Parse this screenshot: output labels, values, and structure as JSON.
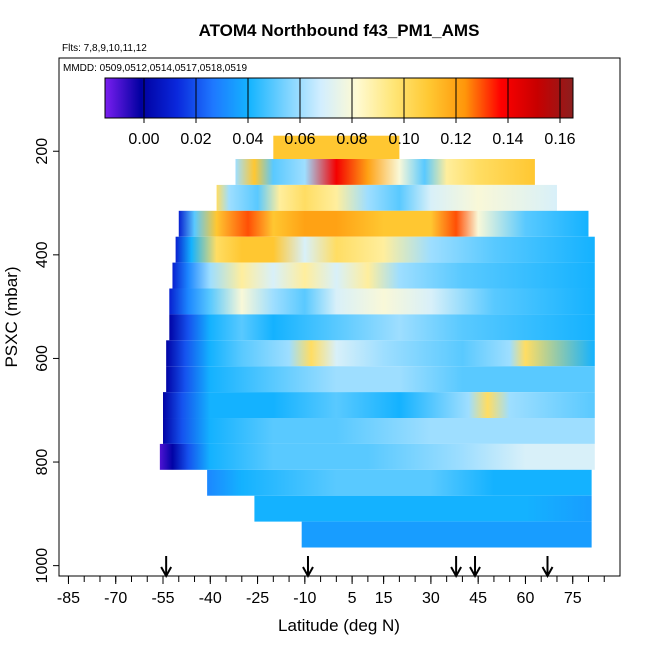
{
  "chart_data": {
    "type": "heatmap",
    "title": "ATOM4 Northbound f43_PM1_AMS",
    "flights_note": "Flts: 7,8,9,10,11,12",
    "dates_note": "MMDD: 0509,0512,0514,0517,0518,0519",
    "xlabel": "Latitude (deg N)",
    "ylabel": "PSXC (mbar)",
    "xlim": [
      -88,
      90
    ],
    "ylim": [
      1020,
      20
    ],
    "x_ticks": [
      -85,
      -70,
      -55,
      -40,
      -25,
      -10,
      5,
      15,
      30,
      45,
      60,
      75
    ],
    "x_tick_labels": [
      "-85",
      "-70",
      "-55",
      "-40",
      "-25",
      "-10",
      "5",
      "15",
      "30",
      "45",
      "60",
      "75"
    ],
    "y_ticks": [
      200,
      400,
      600,
      800,
      1000
    ],
    "y_tick_labels": [
      "200",
      "400",
      "600",
      "800",
      "1000"
    ],
    "colorbar": {
      "min": -0.015,
      "max": 0.165,
      "ticks": [
        0.0,
        0.02,
        0.04,
        0.06,
        0.08,
        0.1,
        0.12,
        0.14,
        0.16
      ],
      "tick_labels": [
        "0.00",
        "0.02",
        "0.04",
        "0.06",
        "0.08",
        "0.10",
        "0.12",
        "0.14",
        "0.16"
      ],
      "colors": [
        "#7a1ef0",
        "#0000a0",
        "#0a28dc",
        "#1e78ff",
        "#14b4ff",
        "#78d2ff",
        "#d2eeff",
        "#fffad2",
        "#ffe678",
        "#ffc832",
        "#ff960a",
        "#ff0000",
        "#c80000",
        "#8c1e1e"
      ]
    },
    "turnaround_latitudes": [
      -54,
      -9,
      38,
      44,
      67
    ],
    "layers": [
      {
        "p_top": 170,
        "p_bot": 215,
        "lat_min": -20,
        "lat_max": 20,
        "values": [
          [
            -20,
            0.11
          ],
          [
            20,
            0.11
          ]
        ]
      },
      {
        "p_top": 215,
        "p_bot": 265,
        "lat_min": -32,
        "lat_max": 63,
        "values": [
          [
            -32,
            0.06
          ],
          [
            -26,
            0.11
          ],
          [
            -20,
            0.05
          ],
          [
            -10,
            0.06
          ],
          [
            0,
            0.14
          ],
          [
            10,
            0.12
          ],
          [
            20,
            0.08
          ],
          [
            28,
            0.05
          ],
          [
            35,
            0.09
          ],
          [
            45,
            0.1
          ],
          [
            63,
            0.11
          ]
        ]
      },
      {
        "p_top": 265,
        "p_bot": 315,
        "lat_min": -38,
        "lat_max": 70,
        "values": [
          [
            -38,
            0.1
          ],
          [
            -34,
            0.06
          ],
          [
            -25,
            0.05
          ],
          [
            -18,
            0.09
          ],
          [
            -10,
            0.1
          ],
          [
            0,
            0.09
          ],
          [
            10,
            0.06
          ],
          [
            20,
            0.05
          ],
          [
            30,
            0.07
          ],
          [
            45,
            0.08
          ],
          [
            70,
            0.07
          ]
        ]
      },
      {
        "p_top": 315,
        "p_bot": 365,
        "lat_min": -50,
        "lat_max": 80,
        "values": [
          [
            -50,
            0.01
          ],
          [
            -45,
            0.05
          ],
          [
            -38,
            0.11
          ],
          [
            -28,
            0.13
          ],
          [
            -20,
            0.11
          ],
          [
            -10,
            0.12
          ],
          [
            0,
            0.12
          ],
          [
            15,
            0.11
          ],
          [
            30,
            0.11
          ],
          [
            38,
            0.13
          ],
          [
            45,
            0.08
          ],
          [
            60,
            0.05
          ],
          [
            80,
            0.04
          ]
        ]
      },
      {
        "p_top": 365,
        "p_bot": 415,
        "lat_min": -51,
        "lat_max": 82,
        "values": [
          [
            -51,
            0.01
          ],
          [
            -46,
            0.04
          ],
          [
            -38,
            0.1
          ],
          [
            -30,
            0.11
          ],
          [
            -20,
            0.11
          ],
          [
            -10,
            0.07
          ],
          [
            0,
            0.1
          ],
          [
            15,
            0.09
          ],
          [
            30,
            0.06
          ],
          [
            50,
            0.05
          ],
          [
            82,
            0.04
          ]
        ]
      },
      {
        "p_top": 415,
        "p_bot": 465,
        "lat_min": -52,
        "lat_max": 82,
        "values": [
          [
            -52,
            0.01
          ],
          [
            -47,
            0.03
          ],
          [
            -40,
            0.06
          ],
          [
            -30,
            0.09
          ],
          [
            -20,
            0.07
          ],
          [
            -10,
            0.09
          ],
          [
            0,
            0.07
          ],
          [
            10,
            0.09
          ],
          [
            20,
            0.06
          ],
          [
            40,
            0.05
          ],
          [
            82,
            0.04
          ]
        ]
      },
      {
        "p_top": 465,
        "p_bot": 515,
        "lat_min": -53,
        "lat_max": 82,
        "values": [
          [
            -53,
            0.01
          ],
          [
            -47,
            0.03
          ],
          [
            -40,
            0.05
          ],
          [
            -30,
            0.08
          ],
          [
            -20,
            0.06
          ],
          [
            -10,
            0.05
          ],
          [
            0,
            0.07
          ],
          [
            15,
            0.08
          ],
          [
            30,
            0.07
          ],
          [
            50,
            0.05
          ],
          [
            82,
            0.04
          ]
        ]
      },
      {
        "p_top": 515,
        "p_bot": 565,
        "lat_min": -53,
        "lat_max": 82,
        "values": [
          [
            -53,
            0.0
          ],
          [
            -47,
            0.02
          ],
          [
            -40,
            0.04
          ],
          [
            -30,
            0.05
          ],
          [
            -20,
            0.04
          ],
          [
            0,
            0.05
          ],
          [
            20,
            0.06
          ],
          [
            40,
            0.05
          ],
          [
            82,
            0.04
          ]
        ]
      },
      {
        "p_top": 565,
        "p_bot": 615,
        "lat_min": -54,
        "lat_max": 82,
        "values": [
          [
            -54,
            0.0
          ],
          [
            -48,
            0.02
          ],
          [
            -40,
            0.04
          ],
          [
            -30,
            0.05
          ],
          [
            -15,
            0.06
          ],
          [
            -8,
            0.1
          ],
          [
            0,
            0.07
          ],
          [
            15,
            0.06
          ],
          [
            40,
            0.05
          ],
          [
            55,
            0.06
          ],
          [
            60,
            0.1
          ],
          [
            82,
            0.04
          ]
        ]
      },
      {
        "p_top": 615,
        "p_bot": 665,
        "lat_min": -54,
        "lat_max": 82,
        "values": [
          [
            -54,
            0.0
          ],
          [
            -48,
            0.02
          ],
          [
            -40,
            0.04
          ],
          [
            -20,
            0.05
          ],
          [
            0,
            0.06
          ],
          [
            20,
            0.06
          ],
          [
            40,
            0.05
          ],
          [
            82,
            0.05
          ]
        ]
      },
      {
        "p_top": 665,
        "p_bot": 715,
        "lat_min": -55,
        "lat_max": 82,
        "values": [
          [
            -55,
            0.0
          ],
          [
            -49,
            0.02
          ],
          [
            -40,
            0.04
          ],
          [
            -20,
            0.04
          ],
          [
            0,
            0.05
          ],
          [
            20,
            0.04
          ],
          [
            42,
            0.06
          ],
          [
            48,
            0.1
          ],
          [
            55,
            0.06
          ],
          [
            82,
            0.05
          ]
        ]
      },
      {
        "p_top": 715,
        "p_bot": 765,
        "lat_min": -55,
        "lat_max": 82,
        "values": [
          [
            -55,
            0.0
          ],
          [
            -49,
            0.02
          ],
          [
            -40,
            0.04
          ],
          [
            -20,
            0.05
          ],
          [
            0,
            0.05
          ],
          [
            30,
            0.06
          ],
          [
            50,
            0.06
          ],
          [
            82,
            0.06
          ]
        ]
      },
      {
        "p_top": 765,
        "p_bot": 815,
        "lat_min": -56,
        "lat_max": 82,
        "values": [
          [
            -56,
            -0.01
          ],
          [
            -52,
            0.0
          ],
          [
            -47,
            0.02
          ],
          [
            -40,
            0.04
          ],
          [
            -20,
            0.05
          ],
          [
            10,
            0.05
          ],
          [
            40,
            0.06
          ],
          [
            60,
            0.07
          ],
          [
            82,
            0.07
          ]
        ]
      },
      {
        "p_top": 815,
        "p_bot": 865,
        "lat_min": -41,
        "lat_max": 81,
        "values": [
          [
            -41,
            0.03
          ],
          [
            -30,
            0.04
          ],
          [
            0,
            0.05
          ],
          [
            30,
            0.05
          ],
          [
            50,
            0.04
          ],
          [
            81,
            0.04
          ]
        ]
      },
      {
        "p_top": 865,
        "p_bot": 915,
        "lat_min": -26,
        "lat_max": 81,
        "values": [
          [
            -26,
            0.04
          ],
          [
            0,
            0.04
          ],
          [
            30,
            0.04
          ],
          [
            60,
            0.04
          ],
          [
            81,
            0.035
          ]
        ]
      },
      {
        "p_top": 915,
        "p_bot": 965,
        "lat_min": -11,
        "lat_max": 81,
        "values": [
          [
            -11,
            0.035
          ],
          [
            81,
            0.035
          ]
        ]
      }
    ]
  }
}
